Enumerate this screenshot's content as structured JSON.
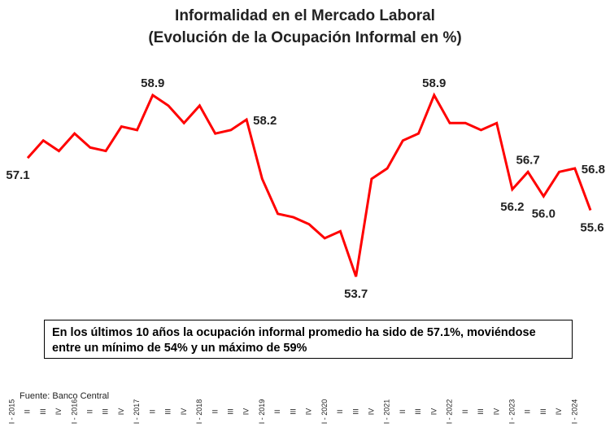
{
  "chart_data": {
    "type": "line",
    "title": "Informalidad en el Mercado Laboral",
    "subtitle": "(Evolución de la Ocupación Informal en %)",
    "annotation": "En los últimos 10 años la ocupación informal promedio ha sido de 57.1%, moviéndose entre un mínimo de 54% y un máximo de 59%",
    "source": "Fuente: Banco Central",
    "color": "#ff0000",
    "categories": [
      "I - 2015",
      "II",
      "III",
      "IV",
      "I - 2016",
      "II",
      "III",
      "IV",
      "I - 2017",
      "II",
      "III",
      "IV",
      "I - 2018",
      "II",
      "III",
      "IV",
      "I - 2019",
      "II",
      "III",
      "IV",
      "I - 2020",
      "II",
      "III",
      "IV",
      "I - 2021",
      "II",
      "III",
      "IV",
      "I - 2022",
      "II",
      "III",
      "IV",
      "I - 2023",
      "II",
      "III",
      "IV",
      "I - 2024"
    ],
    "values": [
      57.1,
      57.6,
      57.3,
      57.8,
      57.4,
      57.3,
      58.0,
      57.9,
      58.9,
      58.6,
      58.1,
      58.6,
      57.8,
      57.9,
      58.2,
      56.5,
      55.5,
      55.4,
      55.2,
      54.8,
      55.0,
      53.7,
      56.5,
      56.8,
      57.6,
      57.8,
      58.9,
      58.1,
      58.1,
      57.9,
      58.1,
      56.2,
      56.7,
      56.0,
      56.7,
      56.8,
      55.6
    ],
    "value_labels": [
      "57.1",
      null,
      null,
      null,
      null,
      null,
      null,
      null,
      "58.9",
      null,
      null,
      null,
      null,
      null,
      "58.2",
      null,
      null,
      null,
      null,
      null,
      null,
      "53.7",
      null,
      null,
      null,
      null,
      "58.9",
      null,
      null,
      null,
      null,
      "56.2",
      "56.7",
      "56.0",
      null,
      "56.8",
      "55.6"
    ]
  }
}
